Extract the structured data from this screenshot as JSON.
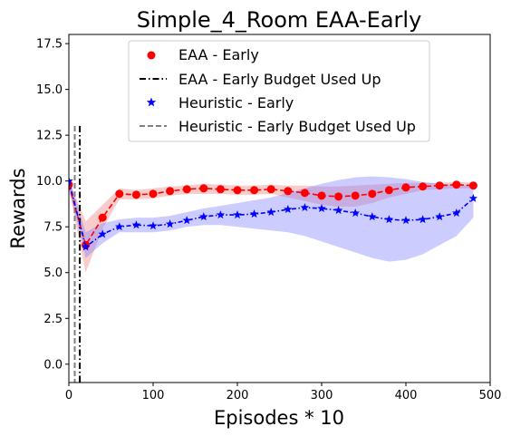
{
  "chart_data": {
    "type": "line",
    "title": "Simple_4_Room EAA-Early",
    "xlabel": "Episodes * 10",
    "ylabel": "Rewards",
    "xlim": [
      0,
      500
    ],
    "ylim": [
      -1.0,
      18.0
    ],
    "xticks": [
      0,
      100,
      200,
      300,
      400,
      500
    ],
    "xtick_labels": [
      "0",
      "100",
      "200",
      "300",
      "400",
      "500"
    ],
    "yticks": [
      0.0,
      2.5,
      5.0,
      7.5,
      10.0,
      12.5,
      15.0,
      17.5
    ],
    "ytick_labels": [
      "0.0",
      "2.5",
      "5.0",
      "7.5",
      "10.0",
      "12.5",
      "15.0",
      "17.5"
    ],
    "grid": false,
    "legend_position": "top-center",
    "series": [
      {
        "name": "EAA - Early",
        "color": "#ff0000",
        "marker": "circle",
        "linestyle": "dashed",
        "x": [
          0,
          20,
          40,
          60,
          80,
          100,
          120,
          140,
          160,
          180,
          200,
          220,
          240,
          260,
          280,
          300,
          320,
          340,
          360,
          380,
          400,
          420,
          440,
          460,
          480
        ],
        "y": [
          9.8,
          6.5,
          8.0,
          9.3,
          9.25,
          9.3,
          9.45,
          9.55,
          9.6,
          9.55,
          9.5,
          9.5,
          9.55,
          9.45,
          9.35,
          9.2,
          9.15,
          9.2,
          9.3,
          9.5,
          9.65,
          9.7,
          9.75,
          9.8,
          9.75
        ],
        "band_lower": [
          9.6,
          5.0,
          7.4,
          9.0,
          9.0,
          9.05,
          9.2,
          9.3,
          9.3,
          9.3,
          9.25,
          9.25,
          9.3,
          9.1,
          8.9,
          8.7,
          8.6,
          8.6,
          8.8,
          9.1,
          9.3,
          9.5,
          9.55,
          9.6,
          9.6
        ],
        "band_upper": [
          10.0,
          7.8,
          8.7,
          9.6,
          9.5,
          9.6,
          9.7,
          9.75,
          9.85,
          9.8,
          9.75,
          9.75,
          9.8,
          9.75,
          9.75,
          9.7,
          9.7,
          9.75,
          9.8,
          9.85,
          9.9,
          9.9,
          9.9,
          9.95,
          9.9
        ],
        "band_color": "#f08080"
      },
      {
        "name": "Heuristic - Early",
        "color": "#0000ff",
        "marker": "star",
        "linestyle": "dashdot",
        "x": [
          0,
          20,
          40,
          60,
          80,
          100,
          120,
          140,
          160,
          180,
          200,
          220,
          240,
          260,
          280,
          300,
          320,
          340,
          360,
          380,
          400,
          420,
          440,
          460,
          480
        ],
        "y": [
          10.0,
          6.4,
          7.1,
          7.5,
          7.6,
          7.55,
          7.65,
          7.85,
          8.05,
          8.15,
          8.15,
          8.2,
          8.3,
          8.45,
          8.55,
          8.5,
          8.4,
          8.25,
          8.05,
          7.9,
          7.85,
          7.9,
          8.05,
          8.25,
          9.05
        ],
        "band_lower": [
          9.6,
          5.8,
          6.6,
          7.2,
          7.2,
          7.2,
          7.3,
          7.5,
          7.6,
          7.6,
          7.5,
          7.4,
          7.3,
          7.2,
          7.0,
          6.7,
          6.4,
          6.1,
          5.8,
          5.6,
          5.7,
          6.0,
          6.5,
          7.0,
          8.0
        ],
        "band_upper": [
          10.2,
          7.2,
          7.7,
          7.9,
          8.0,
          8.0,
          8.1,
          8.3,
          8.5,
          8.65,
          8.8,
          8.95,
          9.1,
          9.35,
          9.6,
          9.85,
          10.05,
          10.2,
          10.25,
          10.2,
          10.1,
          9.95,
          9.85,
          9.8,
          9.75
        ],
        "band_color": "#8080ff"
      }
    ],
    "vlines": [
      {
        "name": "EAA - Early Budget Used Up",
        "x": 13,
        "color": "#000000",
        "linestyle": "dashdot"
      },
      {
        "name": "Heuristic - Early Budget Used Up",
        "x": 7,
        "color": "#808080",
        "linestyle": "dashed"
      }
    ],
    "vline_span": [
      0.0,
      13.0
    ]
  }
}
